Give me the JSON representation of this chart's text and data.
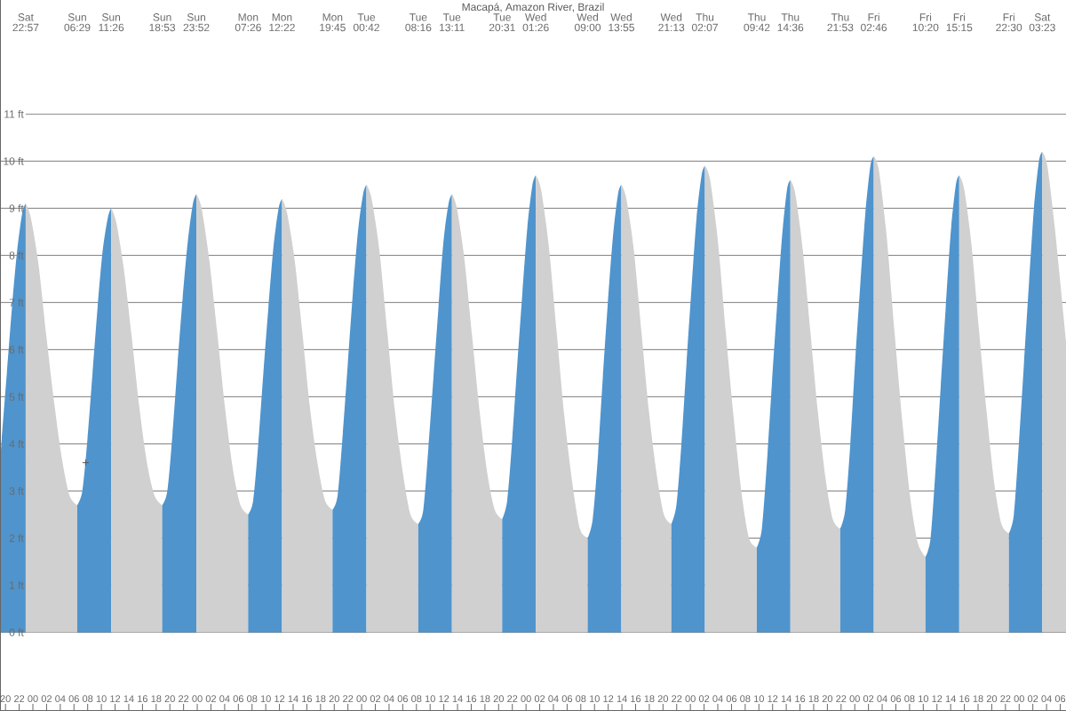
{
  "chart_data": {
    "type": "area",
    "title": "Macapá, Amazon River, Brazil",
    "xlim": [
      19.2,
      174.84
    ],
    "ylim": [
      -1.67,
      13.42
    ],
    "xticks": [
      {
        "value": 20,
        "label": "20"
      },
      {
        "value": 22,
        "label": "22"
      },
      {
        "value": 24,
        "label": "00"
      },
      {
        "value": 26,
        "label": "02"
      },
      {
        "value": 28,
        "label": "04"
      },
      {
        "value": 30,
        "label": "06"
      },
      {
        "value": 32,
        "label": "08"
      },
      {
        "value": 34,
        "label": "10"
      },
      {
        "value": 36,
        "label": "12"
      },
      {
        "value": 38,
        "label": "14"
      },
      {
        "value": 40,
        "label": "16"
      },
      {
        "value": 42,
        "label": "18"
      },
      {
        "value": 44,
        "label": "20"
      },
      {
        "value": 46,
        "label": "22"
      },
      {
        "value": 48,
        "label": "00"
      },
      {
        "value": 50,
        "label": "02"
      },
      {
        "value": 52,
        "label": "04"
      },
      {
        "value": 54,
        "label": "06"
      },
      {
        "value": 56,
        "label": "08"
      },
      {
        "value": 58,
        "label": "10"
      },
      {
        "value": 60,
        "label": "12"
      },
      {
        "value": 62,
        "label": "14"
      },
      {
        "value": 64,
        "label": "16"
      },
      {
        "value": 66,
        "label": "18"
      },
      {
        "value": 68,
        "label": "20"
      },
      {
        "value": 70,
        "label": "22"
      },
      {
        "value": 72,
        "label": "00"
      },
      {
        "value": 74,
        "label": "02"
      },
      {
        "value": 76,
        "label": "04"
      },
      {
        "value": 78,
        "label": "06"
      },
      {
        "value": 80,
        "label": "08"
      },
      {
        "value": 82,
        "label": "10"
      },
      {
        "value": 84,
        "label": "12"
      },
      {
        "value": 86,
        "label": "14"
      },
      {
        "value": 88,
        "label": "16"
      },
      {
        "value": 90,
        "label": "18"
      },
      {
        "value": 92,
        "label": "20"
      },
      {
        "value": 94,
        "label": "22"
      },
      {
        "value": 96,
        "label": "00"
      },
      {
        "value": 98,
        "label": "02"
      },
      {
        "value": 100,
        "label": "04"
      },
      {
        "value": 102,
        "label": "06"
      },
      {
        "value": 104,
        "label": "08"
      },
      {
        "value": 106,
        "label": "10"
      },
      {
        "value": 108,
        "label": "12"
      },
      {
        "value": 110,
        "label": "14"
      },
      {
        "value": 112,
        "label": "16"
      },
      {
        "value": 114,
        "label": "18"
      },
      {
        "value": 116,
        "label": "20"
      },
      {
        "value": 118,
        "label": "22"
      },
      {
        "value": 120,
        "label": "00"
      },
      {
        "value": 122,
        "label": "02"
      },
      {
        "value": 124,
        "label": "04"
      },
      {
        "value": 126,
        "label": "06"
      },
      {
        "value": 128,
        "label": "08"
      },
      {
        "value": 130,
        "label": "10"
      },
      {
        "value": 132,
        "label": "12"
      },
      {
        "value": 134,
        "label": "14"
      },
      {
        "value": 136,
        "label": "16"
      },
      {
        "value": 138,
        "label": "18"
      },
      {
        "value": 140,
        "label": "20"
      },
      {
        "value": 142,
        "label": "22"
      },
      {
        "value": 144,
        "label": "00"
      },
      {
        "value": 146,
        "label": "02"
      },
      {
        "value": 148,
        "label": "04"
      },
      {
        "value": 150,
        "label": "06"
      },
      {
        "value": 152,
        "label": "08"
      },
      {
        "value": 154,
        "label": "10"
      },
      {
        "value": 156,
        "label": "12"
      },
      {
        "value": 158,
        "label": "14"
      },
      {
        "value": 160,
        "label": "16"
      },
      {
        "value": 162,
        "label": "18"
      },
      {
        "value": 164,
        "label": "20"
      },
      {
        "value": 166,
        "label": "22"
      },
      {
        "value": 168,
        "label": "00"
      },
      {
        "value": 170,
        "label": "02"
      },
      {
        "value": 172,
        "label": "04"
      },
      {
        "value": 174,
        "label": "06"
      }
    ],
    "yticks": [
      {
        "value": 0,
        "label": "0 ft"
      },
      {
        "value": 1,
        "label": "1 ft"
      },
      {
        "value": 2,
        "label": "2 ft"
      },
      {
        "value": 3,
        "label": "3 ft"
      },
      {
        "value": 4,
        "label": "4 ft"
      },
      {
        "value": 5,
        "label": "5 ft"
      },
      {
        "value": 6,
        "label": "6 ft"
      },
      {
        "value": 7,
        "label": "7 ft"
      },
      {
        "value": 8,
        "label": "8 ft"
      },
      {
        "value": 9,
        "label": "9 ft"
      },
      {
        "value": 10,
        "label": "10 ft"
      },
      {
        "value": 11,
        "label": "11 ft"
      }
    ],
    "grid": "y",
    "annotations": [
      "Sat 22:57",
      "Sun 06:29",
      "Sun 11:26",
      "Sun 18:53",
      "Sun 23:52",
      "Mon 07:26",
      "Mon 12:22",
      "Mon 19:45",
      "Tue 00:42",
      "Tue 08:16",
      "Tue 13:11",
      "Tue 20:31",
      "Wed 01:26",
      "Wed 09:00",
      "Wed 13:55",
      "Wed 21:13",
      "Thu 02:07",
      "Thu 09:42",
      "Thu 14:36",
      "Thu 21:53",
      "Fri 02:46",
      "Fri 10:20",
      "Fri 15:15",
      "Fri 22:30",
      "Sat 03:23"
    ],
    "series": [
      {
        "color": "#4f94cd",
        "x": [
          19.2,
          19.45,
          20.2,
          20.95,
          21.7,
          22.45,
          22.95
        ],
        "values": [
          3.6,
          4.1,
          5.5,
          6.9,
          8.1,
          8.9,
          9.1
        ]
      },
      {
        "color": "#d0d0d0",
        "x": [
          22.95,
          23.7,
          24.83,
          25.96,
          27.09,
          28.22,
          29.35,
          30.48
        ],
        "values": [
          9.1,
          8.8,
          7.8,
          6.3,
          4.9,
          3.7,
          2.9,
          2.7
        ]
      },
      {
        "color": "#4f94cd",
        "x": [
          30.48,
          31.22,
          31.97,
          32.71,
          33.45,
          34.19,
          34.94,
          35.43
        ],
        "values": [
          2.7,
          3.0,
          4.1,
          5.5,
          6.9,
          8.1,
          8.8,
          9.0
        ]
      },
      {
        "color": "#d0d0d0",
        "x": [
          35.43,
          36.18,
          37.29,
          38.41,
          39.53,
          40.65,
          41.76,
          42.88
        ],
        "values": [
          9.0,
          8.7,
          7.7,
          6.3,
          4.8,
          3.6,
          2.9,
          2.7
        ]
      },
      {
        "color": "#4f94cd",
        "x": [
          42.88,
          43.63,
          44.38,
          45.13,
          45.87,
          46.62,
          47.37,
          47.87
        ],
        "values": [
          2.7,
          3.0,
          4.2,
          5.7,
          7.1,
          8.3,
          9.1,
          9.3
        ]
      },
      {
        "color": "#d0d0d0",
        "x": [
          47.87,
          48.63,
          49.76,
          50.89,
          52.03,
          53.16,
          54.3,
          55.43
        ],
        "values": [
          9.3,
          9.0,
          7.9,
          6.4,
          4.8,
          3.5,
          2.7,
          2.5
        ]
      },
      {
        "color": "#4f94cd",
        "x": [
          55.43,
          56.17,
          56.91,
          57.65,
          58.39,
          59.14,
          59.88,
          60.37
        ],
        "values": [
          2.5,
          2.8,
          4.0,
          5.5,
          6.9,
          8.2,
          9.0,
          9.2
        ]
      },
      {
        "color": "#d0d0d0",
        "x": [
          60.37,
          61.11,
          62.22,
          63.32,
          64.43,
          65.54,
          66.64,
          67.75
        ],
        "values": [
          9.2,
          8.9,
          7.9,
          6.4,
          4.8,
          3.6,
          2.8,
          2.6
        ]
      },
      {
        "color": "#4f94cd",
        "x": [
          67.75,
          68.49,
          69.24,
          69.98,
          70.72,
          71.46,
          72.21,
          72.7
        ],
        "values": [
          2.6,
          2.9,
          4.2,
          5.7,
          7.2,
          8.5,
          9.3,
          9.5
        ]
      },
      {
        "color": "#d0d0d0",
        "x": [
          72.7,
          73.46,
          74.59,
          75.73,
          76.86,
          78.0,
          79.13,
          80.27
        ],
        "values": [
          9.5,
          9.2,
          8.1,
          6.4,
          4.7,
          3.4,
          2.5,
          2.3
        ]
      },
      {
        "color": "#4f94cd",
        "x": [
          80.27,
          81.01,
          81.74,
          82.48,
          83.22,
          83.95,
          84.69,
          85.18
        ],
        "values": [
          2.3,
          2.6,
          3.9,
          5.4,
          6.9,
          8.3,
          9.1,
          9.3
        ]
      },
      {
        "color": "#d0d0d0",
        "x": [
          85.18,
          85.91,
          87.02,
          88.12,
          89.22,
          90.32,
          91.42,
          92.52
        ],
        "values": [
          9.3,
          9.0,
          7.9,
          6.3,
          4.7,
          3.4,
          2.6,
          2.4
        ]
      },
      {
        "color": "#4f94cd",
        "x": [
          92.52,
          93.26,
          93.99,
          94.73,
          95.47,
          96.2,
          96.94,
          97.43
        ],
        "values": [
          2.4,
          2.8,
          4.1,
          5.7,
          7.2,
          8.6,
          9.5,
          9.7
        ]
      },
      {
        "color": "#d0d0d0",
        "x": [
          97.43,
          98.19,
          99.32,
          100.46,
          101.59,
          102.73,
          103.86,
          105.0
        ],
        "values": [
          9.7,
          9.4,
          8.2,
          6.4,
          4.6,
          3.2,
          2.2,
          2.0
        ]
      },
      {
        "color": "#4f94cd",
        "x": [
          105.0,
          105.74,
          106.48,
          107.21,
          107.95,
          108.69,
          109.43,
          109.92
        ],
        "values": [
          2.0,
          2.4,
          3.7,
          5.4,
          7.0,
          8.4,
          9.3,
          9.5
        ]
      },
      {
        "color": "#d0d0d0",
        "x": [
          109.92,
          110.65,
          111.75,
          112.84,
          113.94,
          115.03,
          116.13,
          117.22
        ],
        "values": [
          9.5,
          9.2,
          8.1,
          6.4,
          4.7,
          3.4,
          2.5,
          2.3
        ]
      },
      {
        "color": "#4f94cd",
        "x": [
          117.22,
          117.96,
          118.69,
          119.43,
          120.16,
          120.9,
          121.63,
          122.12
        ],
        "values": [
          2.3,
          2.7,
          4.0,
          5.7,
          7.3,
          8.8,
          9.7,
          9.9
        ]
      },
      {
        "color": "#d0d0d0",
        "x": [
          122.12,
          122.88,
          124.02,
          125.15,
          126.29,
          127.43,
          128.56,
          129.7
        ],
        "values": [
          9.9,
          9.6,
          8.3,
          6.4,
          4.6,
          3.0,
          2.0,
          1.8
        ]
      },
      {
        "color": "#4f94cd",
        "x": [
          129.7,
          130.44,
          131.17,
          131.91,
          132.64,
          133.38,
          134.11,
          134.6
        ],
        "values": [
          1.8,
          2.2,
          3.6,
          5.3,
          6.9,
          8.4,
          9.4,
          9.6
        ]
      },
      {
        "color": "#d0d0d0",
        "x": [
          134.6,
          135.33,
          136.42,
          137.51,
          138.6,
          139.7,
          140.79,
          141.88
        ],
        "values": [
          9.6,
          9.3,
          8.1,
          6.4,
          4.7,
          3.3,
          2.4,
          2.2
        ]
      },
      {
        "color": "#4f94cd",
        "x": [
          141.88,
          142.61,
          143.35,
          144.08,
          144.81,
          145.55,
          146.28,
          146.77
        ],
        "values": [
          2.2,
          2.6,
          4.0,
          5.8,
          7.4,
          8.9,
          9.9,
          10.1
        ]
      },
      {
        "color": "#d0d0d0",
        "x": [
          146.77,
          147.53,
          148.66,
          149.79,
          150.93,
          152.06,
          153.2,
          154.33
        ],
        "values": [
          10.1,
          9.8,
          8.4,
          6.4,
          4.5,
          2.9,
          1.9,
          1.6
        ]
      },
      {
        "color": "#4f94cd",
        "x": [
          154.33,
          155.07,
          155.81,
          156.54,
          157.28,
          158.02,
          158.76,
          159.25
        ],
        "values": [
          1.6,
          2.0,
          3.5,
          5.2,
          6.9,
          8.5,
          9.5,
          9.7
        ]
      },
      {
        "color": "#d0d0d0",
        "x": [
          159.25,
          159.98,
          161.06,
          162.15,
          163.24,
          164.33,
          165.41,
          166.5
        ],
        "values": [
          9.7,
          9.4,
          8.2,
          6.4,
          4.7,
          3.2,
          2.3,
          2.1
        ]
      },
      {
        "color": "#4f94cd",
        "x": [
          166.5,
          167.23,
          167.96,
          168.7,
          169.43,
          170.16,
          170.89,
          171.38
        ],
        "values": [
          2.1,
          2.5,
          4.0,
          5.7,
          7.4,
          9.0,
          10.0,
          10.2
        ]
      },
      {
        "color": "#d0d0d0",
        "x": [
          171.38,
          172.11,
          173.2,
          174.84
        ],
        "values": [
          10.2,
          9.9,
          8.6,
          6.2
        ]
      },
      {
        "type": "scatter",
        "marker": "cross",
        "color": "#555555",
        "x": [
          31.7
        ],
        "values": [
          3.6
        ]
      }
    ]
  }
}
